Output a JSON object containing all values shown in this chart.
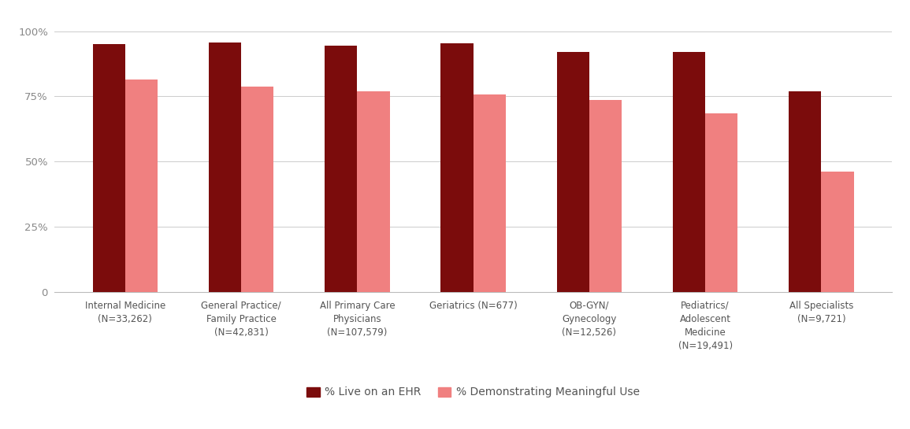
{
  "categories": [
    "Internal Medicine\n(N=33,262)",
    "General Practice/\nFamily Practice\n(N=42,831)",
    "All Primary Care\nPhysicians\n(N=107,579)",
    "Geriatrics (N=677)",
    "OB-GYN/\nGynecology\n(N=12,526)",
    "Pediatrics/\nAdolescent\nMedicine\n(N=19,491)",
    "All Specialists\n(N=9,721)"
  ],
  "ehr_values": [
    0.95,
    0.955,
    0.945,
    0.952,
    0.92,
    0.921,
    0.77
  ],
  "mu_values": [
    0.815,
    0.788,
    0.768,
    0.758,
    0.735,
    0.685,
    0.462
  ],
  "color_ehr": "#7B0C0C",
  "color_mu": "#F08080",
  "yticks": [
    0,
    0.25,
    0.5,
    0.75,
    1.0
  ],
  "ytick_labels": [
    "0",
    "25%",
    "50%",
    "75%",
    "100%"
  ],
  "ylim": [
    0,
    1.07
  ],
  "legend_ehr": "% Live on an EHR",
  "legend_mu": "% Demonstrating Meaningful Use",
  "background_color": "#ffffff",
  "bar_width": 0.28,
  "grid_color": "#cccccc",
  "label_fontsize": 8.5,
  "tick_fontsize": 9.5,
  "legend_fontsize": 10
}
